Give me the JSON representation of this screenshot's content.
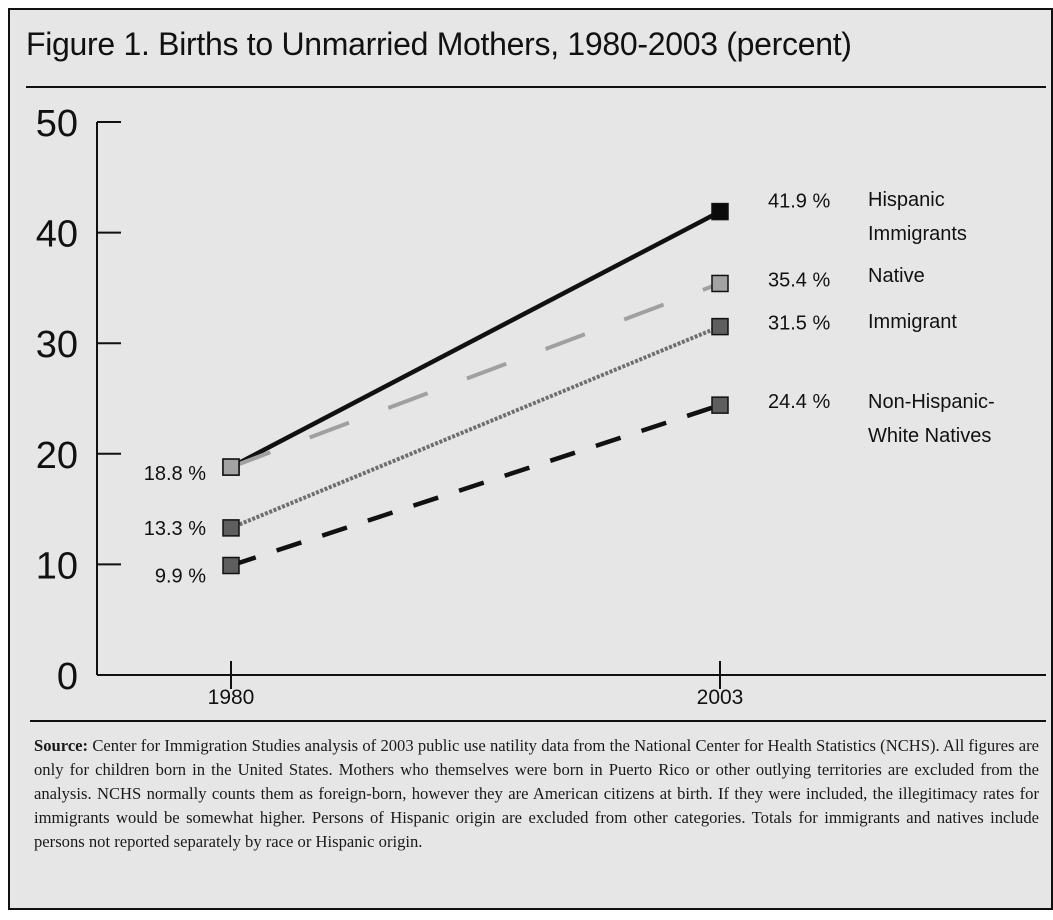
{
  "chart_data": {
    "type": "line",
    "title": "Figure 1. Births to Unmarried Mothers, 1980-2003 (percent)",
    "categories": [
      "1980",
      "2003"
    ],
    "yticks": [
      0,
      10,
      20,
      30,
      40,
      50
    ],
    "ylim": [
      0,
      50
    ],
    "grid": false,
    "legend": "inline labels at right end of lines",
    "series": [
      {
        "name_lines": [
          "Hispanic",
          "Immigrants"
        ],
        "values": [
          18.8,
          41.9
        ],
        "value_labels": [
          "18.8 %",
          "41.9 %"
        ],
        "color": "#111111",
        "line_style": "solid",
        "marker_color": "#0a0a0a"
      },
      {
        "name_lines": [
          "Native"
        ],
        "values": [
          18.8,
          35.4
        ],
        "value_labels": [
          "",
          "35.4 %"
        ],
        "color": "#a0a0a0",
        "line_style": "long-dash",
        "marker_color": "#a3a3a3"
      },
      {
        "name_lines": [
          "Immigrant"
        ],
        "values": [
          13.3,
          31.5
        ],
        "value_labels": [
          "13.3 %",
          "31.5 %"
        ],
        "color": "#6e6e6e",
        "line_style": "dotted",
        "marker_color": "#5e5e5e"
      },
      {
        "name_lines": [
          "Non-Hispanic-",
          "White Natives"
        ],
        "values": [
          9.9,
          24.4
        ],
        "value_labels": [
          "9.9 %",
          "24.4 %"
        ],
        "color": "#111111",
        "line_style": "dashed",
        "marker_color": "#5e5e5e"
      }
    ]
  },
  "source": {
    "label": "Source:",
    "text": " Center for Immigration Studies analysis of 2003 public use natility data from the National Center for Health Statistics (NCHS). All figures are only for children born in the United States.  Mothers who themselves were born in Puerto Rico or other outlying territories are excluded from the analysis.  NCHS normally counts them as foreign-born, however they are American citizens at birth.  If they were included, the illegitimacy rates for immigrants would be somewhat higher. Persons of Hispanic origin are excluded from other categories. Totals for immigrants and natives include persons not reported separately by race or Hispanic origin."
  }
}
